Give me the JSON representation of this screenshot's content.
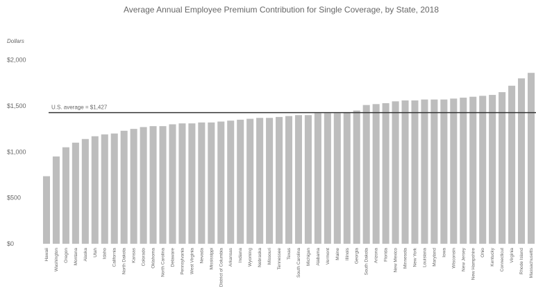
{
  "chart_data": {
    "type": "bar",
    "title": "Average Annual Employee Premium Contribution for Single Coverage, by State, 2018",
    "y_label": "Dollars",
    "categories": [
      "Hawaii",
      "Washington",
      "Oregon",
      "Montana",
      "Alaska",
      "Utah",
      "Idaho",
      "California",
      "North Dakota",
      "Kansas",
      "Colorado",
      "Oklahoma",
      "North Carolina",
      "Delaware",
      "Pennsylvania",
      "West Virginia",
      "Nevada",
      "Mississippi",
      "District of Columbia",
      "Arkansas",
      "Indiana",
      "Wyoming",
      "Nebraska",
      "Missouri",
      "Tennessee",
      "Texas",
      "South Carolina",
      "Michigan",
      "Alabama",
      "Vermont",
      "Maine",
      "Illinois",
      "Georgia",
      "South Dakota",
      "Arizona",
      "Florida",
      "New Mexico",
      "Minnesota",
      "New York",
      "Louisiana",
      "Maryland",
      "Iowa",
      "Wisconsin",
      "New Jersey",
      "New Hampshire",
      "Ohio",
      "Kentucky",
      "Connecticut",
      "Virginia",
      "Rhode Island",
      "Massachusetts"
    ],
    "values": [
      735,
      950,
      1050,
      1100,
      1140,
      1170,
      1190,
      1200,
      1230,
      1250,
      1270,
      1280,
      1280,
      1300,
      1310,
      1310,
      1320,
      1320,
      1330,
      1340,
      1350,
      1360,
      1370,
      1370,
      1380,
      1390,
      1400,
      1400,
      1420,
      1420,
      1420,
      1430,
      1450,
      1510,
      1520,
      1530,
      1550,
      1560,
      1560,
      1570,
      1570,
      1570,
      1580,
      1590,
      1600,
      1610,
      1620,
      1650,
      1720,
      1800,
      1860
    ],
    "color": "#bdbdbd",
    "ylim": [
      0,
      2050
    ],
    "yticks": [
      {
        "value": 0,
        "label": "$0"
      },
      {
        "value": 500,
        "label": "$500"
      },
      {
        "value": 1000,
        "label": "$1,000"
      },
      {
        "value": 1500,
        "label": "$1,500"
      },
      {
        "value": 2000,
        "label": "$2,000"
      }
    ],
    "grid": false,
    "reference_line": {
      "value": 1427,
      "label": "U.S. average = $1,427",
      "color": "#333333"
    }
  }
}
